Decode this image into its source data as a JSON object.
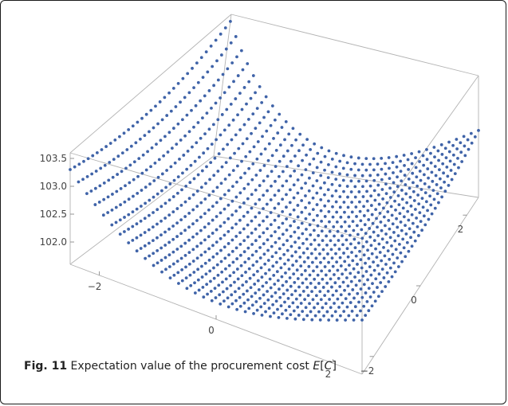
{
  "figure": {
    "caption_label": "Fig. 11",
    "caption_text": "Expectation value of the procurement cost ",
    "caption_var": "E",
    "caption_bracket_open": "[",
    "caption_arg": "C",
    "caption_bracket_close": "]"
  },
  "chart_data": {
    "type": "scatter",
    "title": "",
    "xlabel": "",
    "ylabel": "",
    "zlabel": "",
    "projection": "3d",
    "point_color": "#3f63a8",
    "x_ticks": [
      "-2",
      "0",
      "2"
    ],
    "y_ticks": [
      "-2",
      "0",
      "2"
    ],
    "z_ticks": [
      "102.0",
      "102.5",
      "103.0",
      "103.5"
    ],
    "x_range": [
      -2.5,
      2.5
    ],
    "y_range": [
      -2.5,
      2.5
    ],
    "z_range": [
      101.6,
      103.6
    ],
    "grid": [
      36,
      36
    ],
    "surface": {
      "z_min": 101.7,
      "corner_values": {
        "x_min_y_min": 103.3,
        "x_min_y_max": 103.5,
        "x_max_y_min": 102.4,
        "x_max_y_max": 102.7
      }
    }
  }
}
